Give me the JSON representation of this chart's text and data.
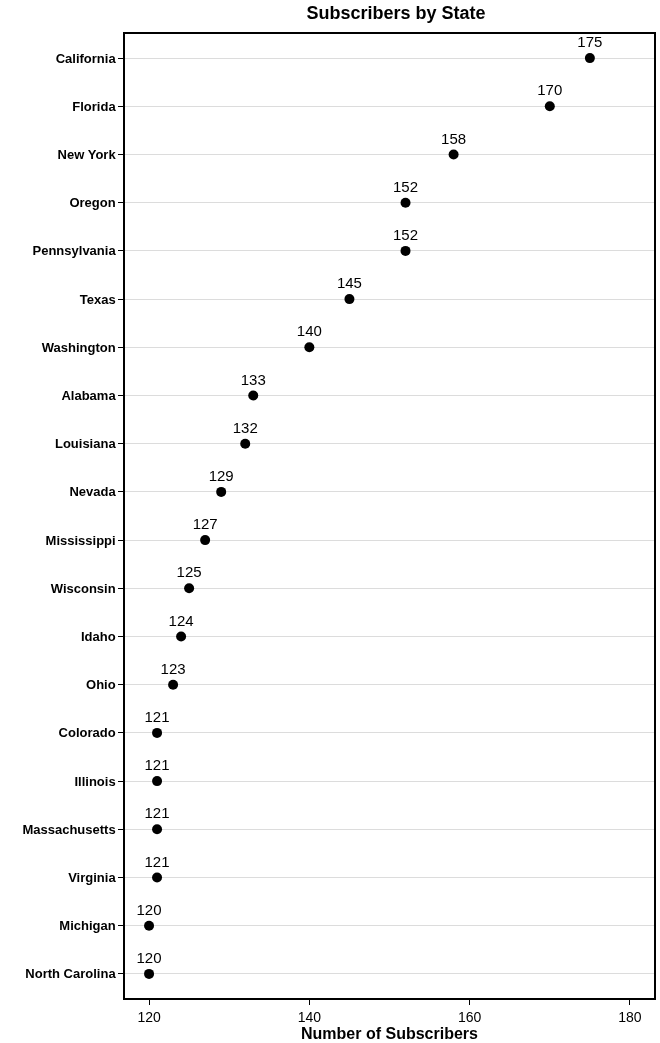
{
  "chart_data": {
    "type": "scatter",
    "orientation": "horizontal",
    "title": "Subscribers by State",
    "xlabel": "Number of Subscribers",
    "categories": [
      "California",
      "Florida",
      "New York",
      "Oregon",
      "Pennsylvania",
      "Texas",
      "Washington",
      "Alabama",
      "Louisiana",
      "Nevada",
      "Mississippi",
      "Wisconsin",
      "Idaho",
      "Ohio",
      "Colorado",
      "Illinois",
      "Massachusetts",
      "Virginia",
      "Michigan",
      "North Carolina"
    ],
    "values": [
      175,
      170,
      158,
      152,
      152,
      145,
      140,
      133,
      132,
      129,
      127,
      125,
      124,
      123,
      121,
      121,
      121,
      121,
      120,
      120
    ],
    "color": "#000000",
    "marker": "circle",
    "data_labels": true,
    "grid": "y",
    "xlim": [
      117,
      183
    ],
    "xticks": [
      120,
      140,
      160,
      180
    ]
  }
}
